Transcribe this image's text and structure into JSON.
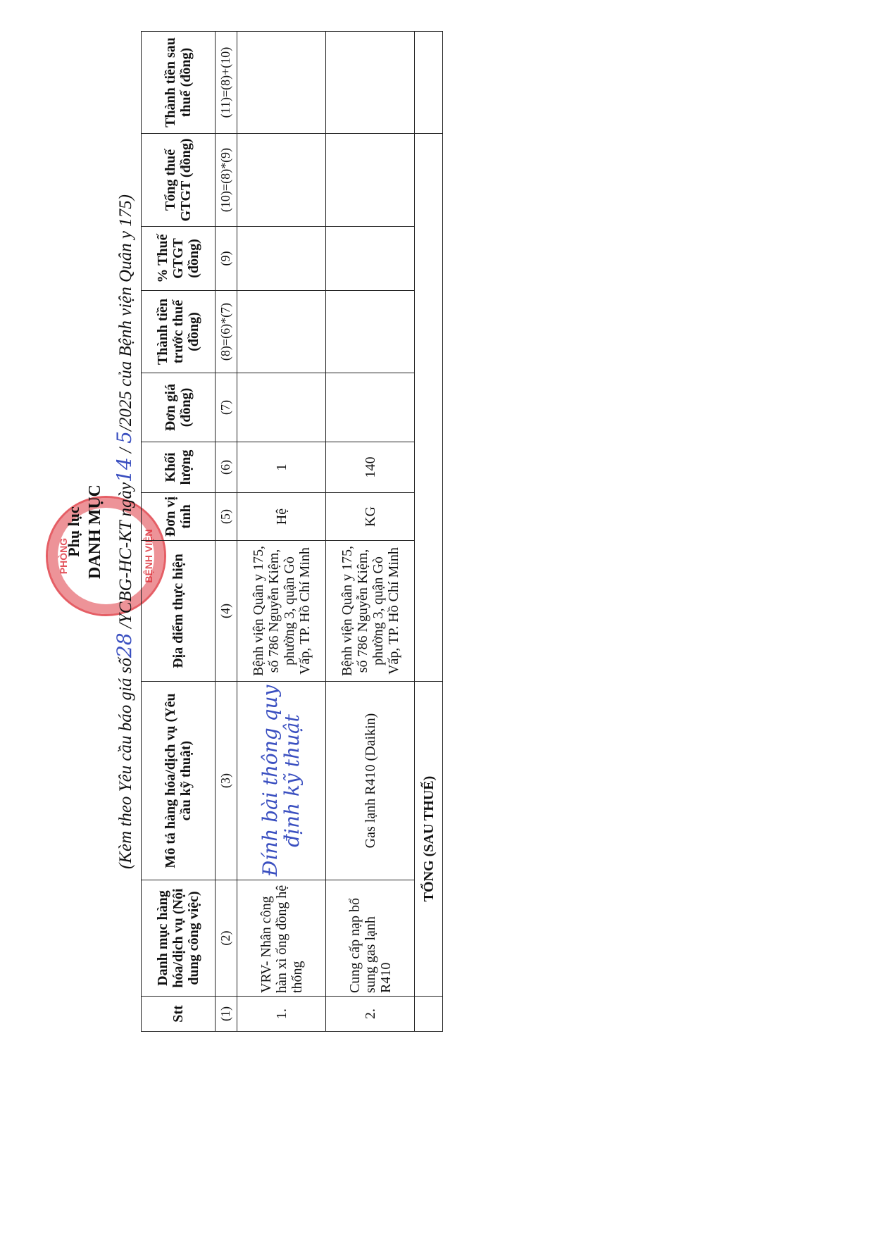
{
  "header": {
    "title_small": "Phụ lục",
    "title_main": "DANH MỤC",
    "subtitle_pre": "(Kèm theo Yêu cầu báo giá số",
    "number_handwritten": "28",
    "subtitle_mid": "/YCBG-HC-KT ngày",
    "day_handwritten": "14",
    "month_handwritten": "5",
    "subtitle_post": "/2025 của Bệnh viện Quân y 175)"
  },
  "stamp": {
    "text_top": "PHÒNG",
    "text_bottom": "BỆNH VIỆN",
    "color": "#dc2832"
  },
  "table": {
    "headers": [
      "Stt",
      "Danh mục hàng hóa/dịch vụ (Nội dung công việc)",
      "Mô tả hàng hóa/dịch vụ (Yêu cầu kỹ thuật)",
      "Địa điểm thực hiện",
      "Đơn vị tính",
      "Khối lượng",
      "Đơn giá (đồng)",
      "Thành tiền trước thuế (đồng)",
      "% Thuế GTGT (đồng)",
      "Tổng thuế GTGT (đồng)",
      "Thành tiền sau thuế (đồng)"
    ],
    "column_numbers": [
      "(1)",
      "(2)",
      "(3)",
      "(4)",
      "(5)",
      "(6)",
      "(7)",
      "(8)=(6)*(7)",
      "(9)",
      "(10)=(8)*(9)",
      "(11)=(8)+(10)"
    ],
    "rows": [
      {
        "stt": "1.",
        "item": "VRV- Nhân công hàn xì ống đồng hệ thống",
        "desc_handwritten_1": "Đính bài thông quy",
        "desc_handwritten_2": "định kỹ thuật",
        "location": "Bệnh viện Quân y 175, số 786 Nguyễn Kiệm, phường 3, quận Gò Vấp, TP. Hồ Chí Minh",
        "unit": "Hệ",
        "qty": "1"
      },
      {
        "stt": "2.",
        "item": "Cung cấp nạp bổ sung gas lạnh R410",
        "desc": "Gas lạnh R410 (Daikin)",
        "location": "Bệnh viện Quân y 175, số 786 Nguyễn Kiệm, phường 3, quận Gò Vấp, TP. Hồ Chí Minh",
        "unit": "KG",
        "qty": "140"
      }
    ],
    "total_label": "TỔNG (SAU THUẾ)"
  }
}
